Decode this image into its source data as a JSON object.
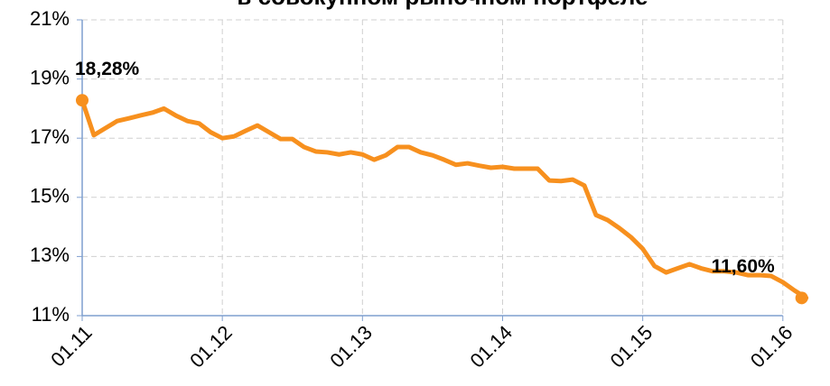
{
  "chart_data": {
    "type": "line",
    "title": "в совокупном рыночном портфеле",
    "categories": [
      "01.11",
      null,
      null,
      null,
      null,
      null,
      null,
      null,
      null,
      null,
      null,
      null,
      "01.12",
      null,
      null,
      null,
      null,
      null,
      null,
      null,
      null,
      null,
      null,
      null,
      "01.13",
      null,
      null,
      null,
      null,
      null,
      null,
      null,
      null,
      null,
      null,
      null,
      "01.14",
      null,
      null,
      null,
      null,
      null,
      null,
      null,
      null,
      null,
      null,
      null,
      "01.15",
      null,
      null,
      null,
      null,
      null,
      null,
      null,
      null,
      null,
      null,
      null,
      "01.16",
      null,
      null
    ],
    "series": [
      {
        "name": null,
        "color": "#f7901e",
        "values": [
          18.28,
          17.1,
          17.34,
          17.58,
          17.67,
          17.77,
          17.86,
          18.0,
          17.77,
          17.58,
          17.5,
          17.2,
          17.0,
          17.06,
          17.25,
          17.43,
          17.2,
          16.97,
          16.97,
          16.7,
          16.55,
          16.52,
          16.45,
          16.52,
          16.45,
          16.27,
          16.42,
          16.7,
          16.7,
          16.52,
          16.42,
          16.27,
          16.1,
          16.15,
          16.07,
          16.0,
          16.03,
          15.97,
          15.97,
          15.97,
          15.57,
          15.55,
          15.6,
          15.4,
          14.4,
          14.23,
          13.96,
          13.65,
          13.26,
          12.68,
          12.46,
          12.6,
          12.74,
          12.6,
          12.5,
          12.5,
          12.46,
          12.37,
          12.37,
          12.34,
          12.13,
          11.85,
          11.6
        ],
        "value_labels": [
          "18,28%",
          null,
          null,
          null,
          null,
          null,
          null,
          null,
          null,
          null,
          null,
          null,
          null,
          null,
          null,
          null,
          null,
          null,
          null,
          null,
          null,
          null,
          null,
          null,
          null,
          null,
          null,
          null,
          null,
          null,
          null,
          null,
          null,
          null,
          null,
          null,
          null,
          null,
          null,
          null,
          null,
          null,
          null,
          null,
          null,
          null,
          null,
          null,
          null,
          null,
          null,
          null,
          null,
          null,
          null,
          null,
          null,
          null,
          null,
          null,
          null,
          null,
          "11,60%"
        ]
      }
    ],
    "ylim": [
      11,
      21
    ],
    "yticks": [
      {
        "value": 11,
        "label": "11%"
      },
      {
        "value": 13,
        "label": "13%"
      },
      {
        "value": 15,
        "label": "15%"
      },
      {
        "value": 17,
        "label": "17%"
      },
      {
        "value": 19,
        "label": "19%"
      },
      {
        "value": 21,
        "label": "21%"
      }
    ],
    "grid": true
  }
}
